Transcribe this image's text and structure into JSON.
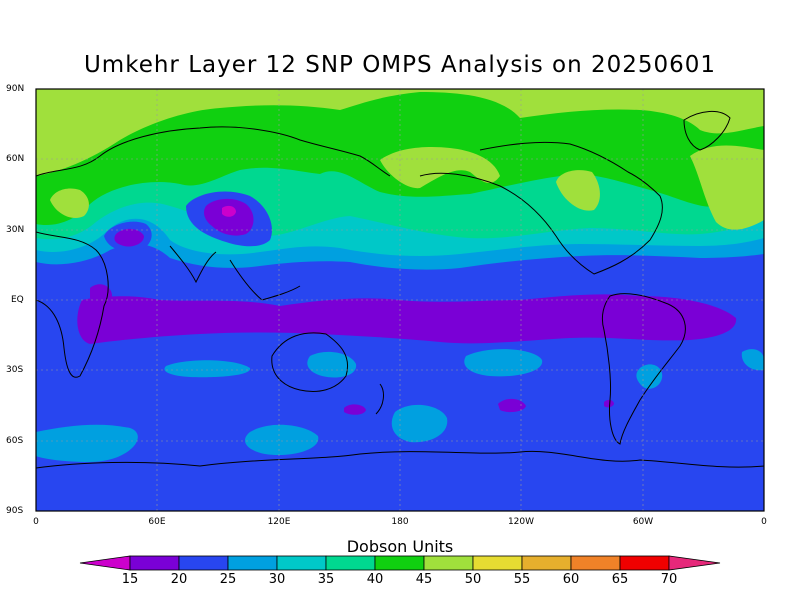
{
  "title": "Umkehr Layer 12 SNP OMPS Analysis on 20250601",
  "lat_labels": [
    "90N",
    "60N",
    "30N",
    "EQ",
    "30S",
    "60S",
    "90S"
  ],
  "lon_labels": [
    "0",
    "60E",
    "120E",
    "180",
    "120W",
    "60W",
    "0"
  ],
  "colorbar": {
    "title": "Dobson Units",
    "labels": [
      "15",
      "20",
      "25",
      "30",
      "35",
      "40",
      "45",
      "50",
      "55",
      "60",
      "65",
      "70"
    ],
    "colors": [
      "#cc00cc",
      "#7a00d6",
      "#2846f0",
      "#00a0e0",
      "#00c8c8",
      "#00d890",
      "#10d010",
      "#a0e03c",
      "#e6dc32",
      "#e6af2d",
      "#f08228",
      "#f00000",
      "#e6287a"
    ]
  },
  "field_colors": {
    "band_20_25": "#2846f0",
    "band_15_20": "#7a00d6",
    "band_25_30": "#00a0e0",
    "band_30_35": "#00c8c8",
    "band_35_40": "#00d890",
    "band_40_45": "#10d010",
    "band_45_50": "#a0e03c"
  }
}
